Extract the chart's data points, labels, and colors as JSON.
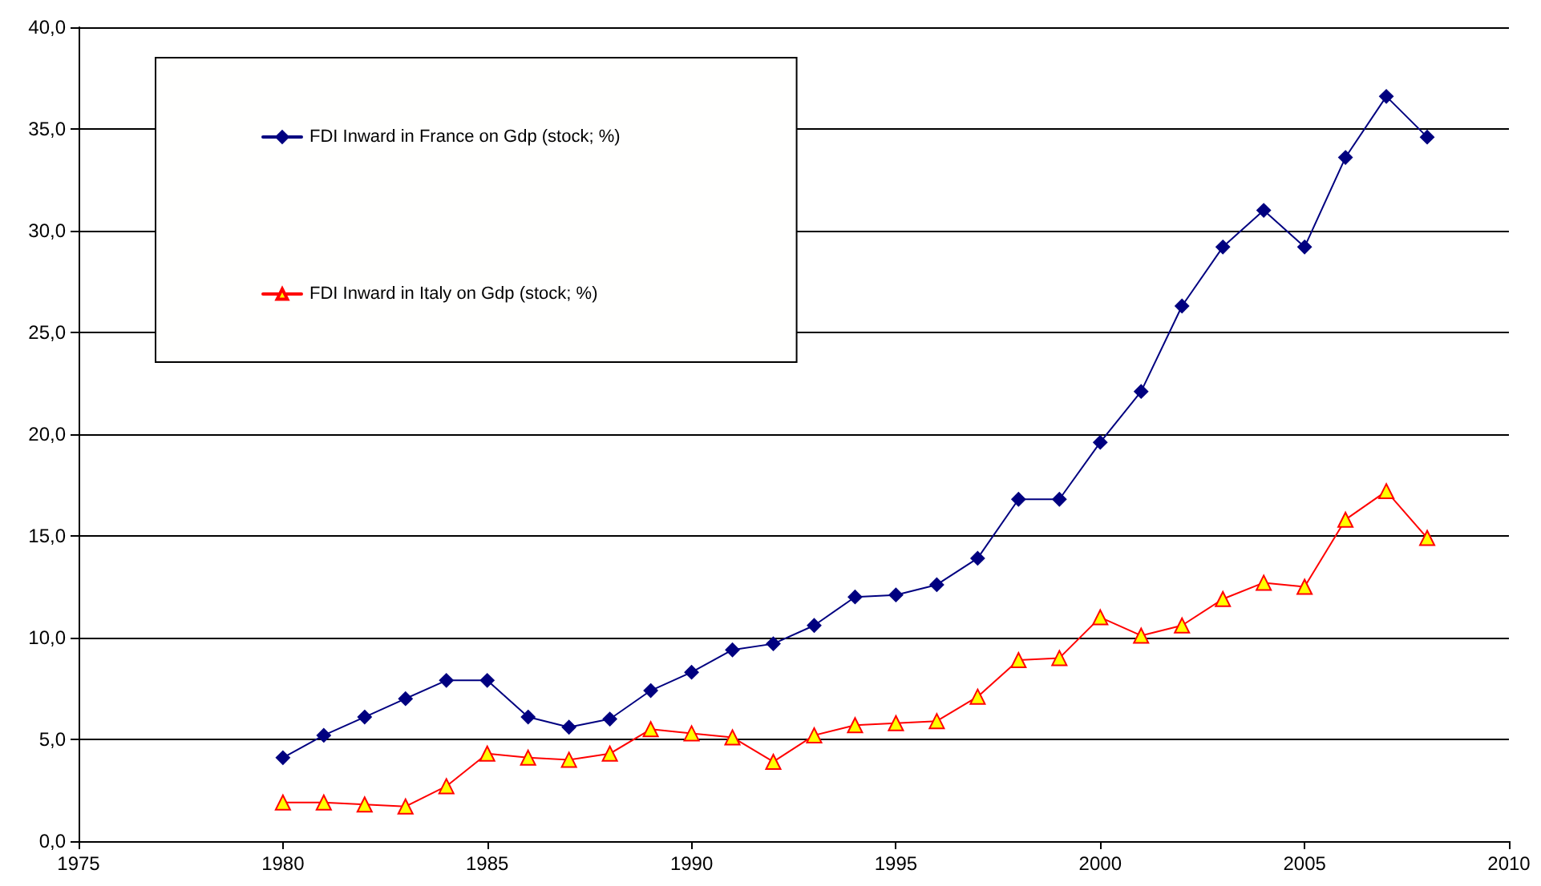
{
  "chart_data": {
    "type": "line",
    "x": [
      1980,
      1981,
      1982,
      1983,
      1984,
      1985,
      1986,
      1987,
      1988,
      1989,
      1990,
      1991,
      1992,
      1993,
      1994,
      1995,
      1996,
      1997,
      1998,
      1999,
      2000,
      2001,
      2002,
      2003,
      2004,
      2005,
      2006,
      2007,
      2008
    ],
    "series": [
      {
        "name": "FDI Inward in France on Gdp (stock; %)",
        "color": "#000080",
        "marker": "diamond",
        "values": [
          4.1,
          5.2,
          6.1,
          7.0,
          7.9,
          7.9,
          6.1,
          5.6,
          6.0,
          7.4,
          8.3,
          9.4,
          9.7,
          10.6,
          12.0,
          12.1,
          12.6,
          13.9,
          16.8,
          16.8,
          19.6,
          22.1,
          26.3,
          29.2,
          31.0,
          29.2,
          33.6,
          36.6,
          34.6
        ]
      },
      {
        "name": "FDI Inward in Italy on Gdp (stock; %)",
        "color": "#ff0000",
        "marker": "triangle",
        "values": [
          1.9,
          1.9,
          1.8,
          1.7,
          2.7,
          4.3,
          4.1,
          4.0,
          4.3,
          5.5,
          5.3,
          5.1,
          3.9,
          5.2,
          5.7,
          5.8,
          5.9,
          7.1,
          8.9,
          9.0,
          11.0,
          10.1,
          10.6,
          11.9,
          12.7,
          12.5,
          15.8,
          17.2,
          14.9
        ]
      }
    ],
    "xlim": [
      1975,
      2010
    ],
    "xticks": [
      1975,
      1980,
      1985,
      1990,
      1995,
      2000,
      2005,
      2010
    ],
    "ylim": [
      0,
      40
    ],
    "yticks": [
      {
        "value": 0,
        "label": "0,0"
      },
      {
        "value": 5,
        "label": "5,0"
      },
      {
        "value": 10,
        "label": "10,0"
      },
      {
        "value": 15,
        "label": "15,0"
      },
      {
        "value": 20,
        "label": "20,0"
      },
      {
        "value": 25,
        "label": "25,0"
      },
      {
        "value": 30,
        "label": "30,0"
      },
      {
        "value": 35,
        "label": "35,0"
      },
      {
        "value": 40,
        "label": "40,0"
      }
    ],
    "grid": "y",
    "legend": "top left",
    "line_style": "solid"
  }
}
